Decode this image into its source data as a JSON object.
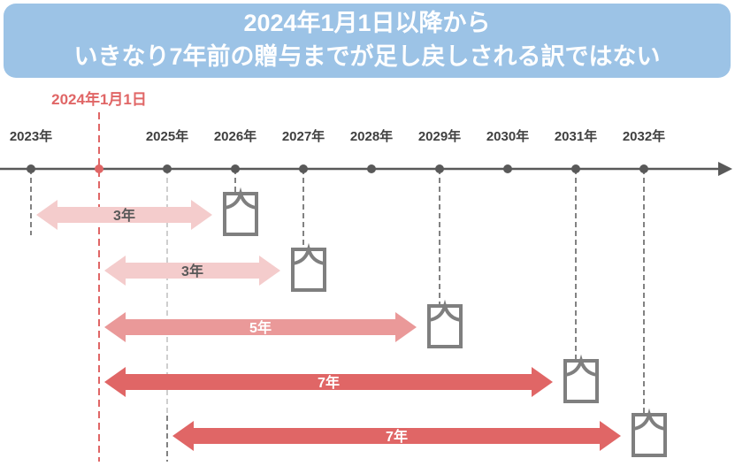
{
  "banner": {
    "line1": "2024年1月1日以降から",
    "line2": "いきなり7年前の贈与までが足し戻しされる訳ではない"
  },
  "marker": {
    "label": "2024年1月1日",
    "year": 2024,
    "color": "#e06666"
  },
  "timeline": {
    "years": [
      {
        "year": 2023,
        "label": "2023年"
      },
      {
        "year": 2025,
        "label": "2025年"
      },
      {
        "year": 2026,
        "label": "2026年"
      },
      {
        "year": 2027,
        "label": "2027年"
      },
      {
        "year": 2028,
        "label": "2028年"
      },
      {
        "year": 2029,
        "label": "2029年"
      },
      {
        "year": 2030,
        "label": "2030年"
      },
      {
        "year": 2031,
        "label": "2031年"
      },
      {
        "year": 2032,
        "label": "2032年"
      }
    ],
    "ticks": [
      2023,
      2024,
      2025,
      2026,
      2027,
      2028,
      2029,
      2030,
      2031,
      2032
    ]
  },
  "periods": [
    {
      "start": 2023,
      "end": 2026,
      "label": "3年",
      "color": "#f4cccc",
      "text_color": "#595959"
    },
    {
      "start": 2024,
      "end": 2027,
      "label": "3年",
      "color": "#f4cccc",
      "text_color": "#595959"
    },
    {
      "start": 2024,
      "end": 2029,
      "label": "5年",
      "color": "#ea9999",
      "text_color": "#ffffff"
    },
    {
      "start": 2024,
      "end": 2031,
      "label": "7年",
      "color": "#e06666",
      "text_color": "#ffffff"
    },
    {
      "start": 2025,
      "end": 2032,
      "label": "7年",
      "color": "#e06666",
      "text_color": "#ffffff"
    }
  ],
  "colors": {
    "axis": "#595959",
    "icon": "#7f7f7f",
    "dashes": "#595959",
    "light_dashes": "#bfbfbf"
  }
}
